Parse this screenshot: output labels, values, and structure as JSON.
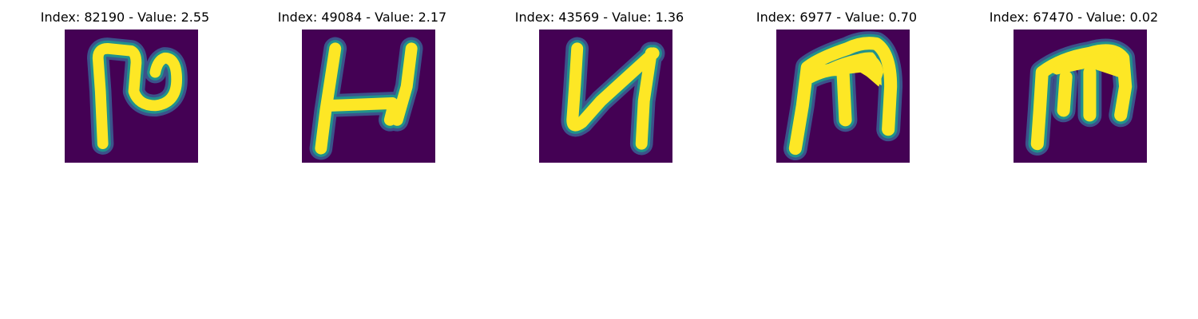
{
  "figure": {
    "panels": [
      {
        "title": "Index: 82190 - Value: 2.55",
        "glyph_description": "handwritten stroke resembling a hooked P"
      },
      {
        "title": "Index: 49084 - Value: 2.17",
        "glyph_description": "handwritten stroke resembling an H"
      },
      {
        "title": "Index: 43569 - Value: 1.36",
        "glyph_description": "handwritten stroke resembling a Cyrillic И"
      },
      {
        "title": "Index: 6977 - Value: 0.70",
        "glyph_description": "handwritten stroke resembling an m"
      },
      {
        "title": "Index: 67470 - Value: 0.02",
        "glyph_description": "handwritten stroke resembling an m"
      }
    ],
    "colors": {
      "background": "#440154",
      "stroke": "#fde725",
      "edge_mid": "#21918c",
      "edge_outer": "#3b528b"
    }
  }
}
